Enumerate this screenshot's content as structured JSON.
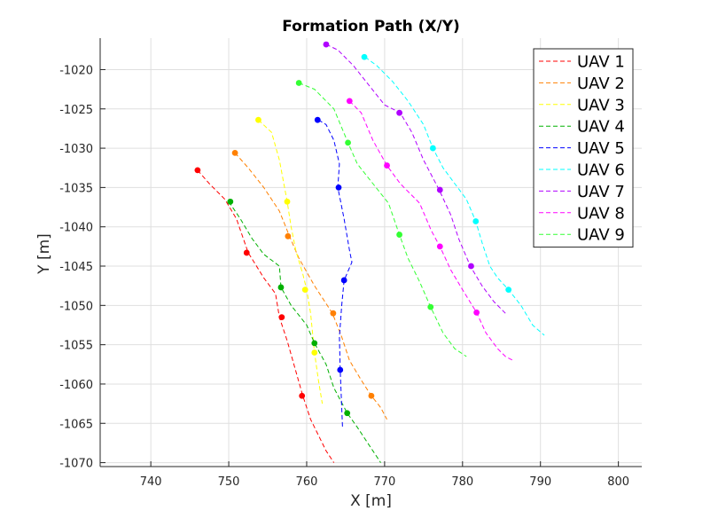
{
  "chart_data": {
    "type": "line",
    "title": "Formation Path (X/Y)",
    "xlabel": "X [m]",
    "ylabel": "Y [m]",
    "xlim": [
      733.5,
      803
    ],
    "ylim": [
      -1070.5,
      -1016
    ],
    "xticks": [
      740,
      750,
      760,
      770,
      780,
      790,
      800
    ],
    "yticks": [
      -1070,
      -1065,
      -1060,
      -1055,
      -1050,
      -1045,
      -1040,
      -1035,
      -1030,
      -1025,
      -1020
    ],
    "grid": true,
    "legend_position": "top-right",
    "series": [
      {
        "name": "UAV 1",
        "color": "#ff0000",
        "x": [
          746.0,
          747.5,
          749.5,
          751.0,
          752.5,
          754.5,
          756.0,
          756.5,
          757.5,
          758.5,
          759.5,
          760.5,
          761.5,
          762.5,
          763.5
        ],
        "y": [
          -1032.8,
          -1034.5,
          -1036.5,
          -1039.0,
          -1043.3,
          -1046.5,
          -1048.5,
          -1051.5,
          -1054.5,
          -1058.0,
          -1061.5,
          -1064.5,
          -1066.5,
          -1068.5,
          -1070.0
        ],
        "markers": [
          [
            746.0,
            -1032.8
          ],
          [
            752.3,
            -1043.3
          ],
          [
            756.8,
            -1051.5
          ],
          [
            759.4,
            -1061.5
          ]
        ]
      },
      {
        "name": "UAV 2",
        "color": "#ff8000",
        "x": [
          750.8,
          752.5,
          754.5,
          756.5,
          757.8,
          759.0,
          761.0,
          763.3,
          764.5,
          765.5,
          767.0,
          768.3,
          769.5,
          770.3
        ],
        "y": [
          -1030.6,
          -1032.5,
          -1035.0,
          -1038.0,
          -1041.2,
          -1044.0,
          -1047.5,
          -1051.0,
          -1054.0,
          -1057.0,
          -1059.5,
          -1061.5,
          -1063.0,
          -1064.5
        ],
        "markers": [
          [
            750.8,
            -1030.6
          ],
          [
            757.6,
            -1041.2
          ],
          [
            763.4,
            -1051.0
          ],
          [
            768.3,
            -1061.5
          ]
        ]
      },
      {
        "name": "UAV 3",
        "color": "#ffff00",
        "x": [
          753.8,
          755.5,
          756.5,
          757.5,
          758.0,
          758.6,
          759.5,
          760.0,
          760.5,
          761.0,
          761.5,
          762.0
        ],
        "y": [
          -1026.4,
          -1028.0,
          -1031.5,
          -1036.8,
          -1040.0,
          -1043.0,
          -1046.0,
          -1048.0,
          -1051.0,
          -1056.0,
          -1059.5,
          -1062.5
        ],
        "markers": [
          [
            753.8,
            -1026.4
          ],
          [
            757.5,
            -1036.8
          ],
          [
            759.8,
            -1048.0
          ],
          [
            761.0,
            -1056.0
          ]
        ]
      },
      {
        "name": "UAV 4",
        "color": "#00b000",
        "x": [
          750.0,
          751.5,
          753.0,
          754.5,
          756.5,
          756.7,
          758.0,
          760.0,
          761.0,
          762.5,
          763.5,
          765.2,
          766.5,
          767.5,
          768.5,
          769.5
        ],
        "y": [
          -1036.8,
          -1039.0,
          -1041.5,
          -1043.5,
          -1045.0,
          -1047.7,
          -1050.0,
          -1052.5,
          -1054.8,
          -1057.5,
          -1060.5,
          -1063.7,
          -1065.5,
          -1067.0,
          -1068.5,
          -1070.0
        ],
        "markers": [
          [
            750.2,
            -1036.8
          ],
          [
            756.7,
            -1047.7
          ],
          [
            761.0,
            -1054.8
          ],
          [
            765.2,
            -1063.7
          ]
        ]
      },
      {
        "name": "UAV 5",
        "color": "#0000ff",
        "x": [
          761.5,
          762.5,
          763.5,
          764.2,
          764.0,
          764.8,
          765.5,
          765.8,
          764.8,
          764.5,
          764.2,
          764.3,
          764.6
        ],
        "y": [
          -1026.4,
          -1027.0,
          -1029.0,
          -1032.0,
          -1035.0,
          -1039.0,
          -1043.0,
          -1044.5,
          -1046.8,
          -1050.0,
          -1054.0,
          -1058.2,
          -1065.5
        ],
        "markers": [
          [
            761.4,
            -1026.4
          ],
          [
            764.1,
            -1035.0
          ],
          [
            764.8,
            -1046.8
          ],
          [
            764.3,
            -1058.2
          ]
        ]
      },
      {
        "name": "UAV 6",
        "color": "#00ffff",
        "x": [
          767.5,
          769.0,
          771.0,
          773.0,
          775.0,
          776.2,
          777.5,
          779.0,
          780.5,
          781.7,
          782.5,
          783.5,
          784.5,
          785.9,
          787.5,
          789.0,
          790.5
        ],
        "y": [
          -1018.4,
          -1019.5,
          -1021.5,
          -1024.0,
          -1027.0,
          -1030.0,
          -1032.5,
          -1034.5,
          -1036.5,
          -1039.3,
          -1042.0,
          -1045.0,
          -1046.5,
          -1048.0,
          -1050.0,
          -1052.5,
          -1053.8
        ],
        "markers": [
          [
            767.4,
            -1018.4
          ],
          [
            776.2,
            -1030.0
          ],
          [
            781.7,
            -1039.3
          ],
          [
            785.9,
            -1048.0
          ]
        ]
      },
      {
        "name": "UAV 7",
        "color": "#b000ff",
        "x": [
          762.5,
          764.0,
          766.0,
          768.0,
          770.0,
          772.0,
          773.5,
          775.0,
          777.0,
          778.5,
          779.5,
          781.0,
          782.5,
          784.0,
          785.5
        ],
        "y": [
          -1016.8,
          -1017.5,
          -1019.5,
          -1022.0,
          -1024.5,
          -1025.5,
          -1028.0,
          -1031.5,
          -1035.3,
          -1038.5,
          -1041.5,
          -1045.0,
          -1047.5,
          -1049.5,
          -1051.0
        ],
        "markers": [
          [
            762.5,
            -1016.8
          ],
          [
            771.9,
            -1025.5
          ],
          [
            777.1,
            -1035.3
          ],
          [
            781.1,
            -1045.0
          ]
        ]
      },
      {
        "name": "UAV 8",
        "color": "#ff00ff",
        "x": [
          765.5,
          767.0,
          768.5,
          770.3,
          772.0,
          774.5,
          776.0,
          777.1,
          778.5,
          780.0,
          781.8,
          783.0,
          784.5,
          785.5,
          786.5
        ],
        "y": [
          -1024.0,
          -1025.5,
          -1029.0,
          -1032.2,
          -1034.5,
          -1037.0,
          -1040.5,
          -1042.5,
          -1045.5,
          -1048.0,
          -1050.9,
          -1053.5,
          -1055.5,
          -1056.5,
          -1057.0
        ],
        "markers": [
          [
            765.5,
            -1024.0
          ],
          [
            770.3,
            -1032.2
          ],
          [
            777.1,
            -1042.5
          ],
          [
            781.8,
            -1050.9
          ]
        ]
      },
      {
        "name": "UAV 9",
        "color": "#33ff33",
        "x": [
          759.0,
          761.0,
          763.5,
          765.3,
          766.5,
          768.5,
          770.5,
          771.9,
          773.0,
          774.5,
          775.9,
          777.5,
          779.0,
          780.5
        ],
        "y": [
          -1021.7,
          -1022.5,
          -1025.0,
          -1029.3,
          -1032.0,
          -1034.5,
          -1037.0,
          -1041.0,
          -1044.0,
          -1047.0,
          -1050.2,
          -1053.5,
          -1055.5,
          -1056.5
        ],
        "markers": [
          [
            759.0,
            -1021.7
          ],
          [
            765.3,
            -1029.3
          ],
          [
            771.9,
            -1041.0
          ],
          [
            775.9,
            -1050.2
          ]
        ]
      }
    ]
  }
}
